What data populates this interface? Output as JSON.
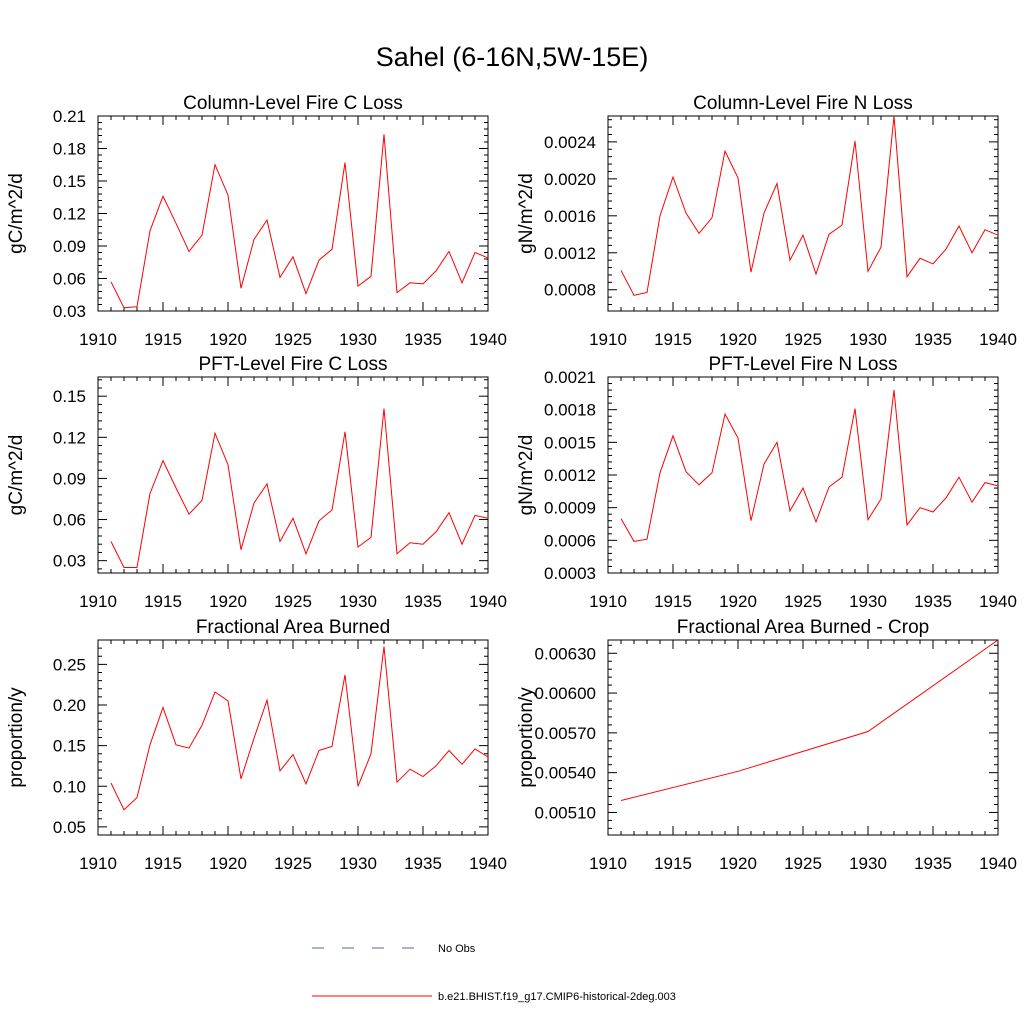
{
  "figure_title": "Sahel (6-16N,5W-15E)",
  "colors": {
    "model": "#ff0000",
    "obs": "#5566aa",
    "axis": "#000000"
  },
  "legend": {
    "obs_label": "No Obs",
    "model_label": "b.e21.BHIST.f19_g17.CMIP6-historical-2deg.003"
  },
  "chart_data": [
    {
      "type": "line",
      "title": "Column-Level Fire C Loss",
      "ylabel": "gC/m^2/d",
      "xlim": [
        1910,
        1940
      ],
      "ylim": [
        0.03,
        0.21
      ],
      "xticks": [
        1910,
        1915,
        1920,
        1925,
        1930,
        1935,
        1940
      ],
      "xtick_labels": [
        "1910",
        "1915",
        "1920",
        "1925",
        "1930",
        "1935",
        "1940"
      ],
      "yticks": [
        0.03,
        0.06,
        0.09,
        0.12,
        0.15,
        0.18,
        0.21
      ],
      "ytick_labels": [
        "0.03",
        "0.06",
        "0.09",
        "0.12",
        "0.15",
        "0.18",
        "0.21"
      ],
      "series": [
        {
          "x": [
            1911,
            1912,
            1913,
            1914,
            1915,
            1916,
            1917,
            1918,
            1919,
            1920,
            1921,
            1922,
            1923,
            1924,
            1925,
            1926,
            1927,
            1928,
            1929,
            1930,
            1931,
            1932,
            1933,
            1934,
            1935,
            1936,
            1937,
            1938,
            1939,
            1940
          ],
          "values": [
            0.057,
            0.033,
            0.034,
            0.104,
            0.136,
            0.111,
            0.085,
            0.1,
            0.165,
            0.137,
            0.051,
            0.096,
            0.114,
            0.061,
            0.08,
            0.046,
            0.077,
            0.087,
            0.167,
            0.053,
            0.062,
            0.193,
            0.047,
            0.056,
            0.055,
            0.067,
            0.085,
            0.056,
            0.084,
            0.079
          ]
        }
      ]
    },
    {
      "type": "line",
      "title": "Column-Level Fire N Loss",
      "ylabel": "gN/m^2/d",
      "xlim": [
        1910,
        1940
      ],
      "ylim": [
        0.00057,
        0.00268
      ],
      "xticks": [
        1910,
        1915,
        1920,
        1925,
        1930,
        1935,
        1940
      ],
      "xtick_labels": [
        "1910",
        "1915",
        "1920",
        "1925",
        "1930",
        "1935",
        "1940"
      ],
      "yticks": [
        0.0008,
        0.0012,
        0.0016,
        0.002,
        0.0024
      ],
      "ytick_labels": [
        "0.0008",
        "0.0012",
        "0.0016",
        "0.0020",
        "0.0024"
      ],
      "series": [
        {
          "x": [
            1911,
            1912,
            1913,
            1914,
            1915,
            1916,
            1917,
            1918,
            1919,
            1920,
            1921,
            1922,
            1923,
            1924,
            1925,
            1926,
            1927,
            1928,
            1929,
            1930,
            1931,
            1932,
            1933,
            1934,
            1935,
            1936,
            1937,
            1938,
            1939,
            1940
          ],
          "values": [
            0.00101,
            0.00074,
            0.00077,
            0.0016,
            0.00202,
            0.00163,
            0.00141,
            0.00158,
            0.0023,
            0.00201,
            0.00099,
            0.00163,
            0.00195,
            0.00112,
            0.00139,
            0.00097,
            0.0014,
            0.0015,
            0.00241,
            0.001,
            0.00126,
            0.00268,
            0.00094,
            0.00114,
            0.00108,
            0.00124,
            0.00149,
            0.0012,
            0.00145,
            0.00139
          ]
        }
      ]
    },
    {
      "type": "line",
      "title": "PFT-Level Fire C Loss",
      "ylabel": "gC/m^2/d",
      "xlim": [
        1910,
        1940
      ],
      "ylim": [
        0.021,
        0.164
      ],
      "xticks": [
        1910,
        1915,
        1920,
        1925,
        1930,
        1935,
        1940
      ],
      "xtick_labels": [
        "1910",
        "1915",
        "1920",
        "1925",
        "1930",
        "1935",
        "1940"
      ],
      "yticks": [
        0.03,
        0.06,
        0.09,
        0.12,
        0.15
      ],
      "ytick_labels": [
        "0.03",
        "0.06",
        "0.09",
        "0.12",
        "0.15"
      ],
      "series": [
        {
          "x": [
            1911,
            1912,
            1913,
            1914,
            1915,
            1916,
            1917,
            1918,
            1919,
            1920,
            1921,
            1922,
            1923,
            1924,
            1925,
            1926,
            1927,
            1928,
            1929,
            1930,
            1931,
            1932,
            1933,
            1934,
            1935,
            1936,
            1937,
            1938,
            1939,
            1940
          ],
          "values": [
            0.044,
            0.025,
            0.025,
            0.079,
            0.103,
            0.083,
            0.064,
            0.074,
            0.123,
            0.1,
            0.038,
            0.072,
            0.086,
            0.044,
            0.061,
            0.035,
            0.059,
            0.067,
            0.124,
            0.04,
            0.047,
            0.141,
            0.035,
            0.043,
            0.042,
            0.051,
            0.065,
            0.042,
            0.063,
            0.061
          ]
        }
      ]
    },
    {
      "type": "line",
      "title": "PFT-Level Fire N Loss",
      "ylabel": "gN/m^2/d",
      "xlim": [
        1910,
        1940
      ],
      "ylim": [
        0.0003,
        0.0021
      ],
      "xticks": [
        1910,
        1915,
        1920,
        1925,
        1930,
        1935,
        1940
      ],
      "xtick_labels": [
        "1910",
        "1915",
        "1920",
        "1925",
        "1930",
        "1935",
        "1940"
      ],
      "yticks": [
        0.0003,
        0.0006,
        0.0009,
        0.0012,
        0.0015,
        0.0018,
        0.0021
      ],
      "ytick_labels": [
        "0.0003",
        "0.0006",
        "0.0009",
        "0.0012",
        "0.0015",
        "0.0018",
        "0.0021"
      ],
      "series": [
        {
          "x": [
            1911,
            1912,
            1913,
            1914,
            1915,
            1916,
            1917,
            1918,
            1919,
            1920,
            1921,
            1922,
            1923,
            1924,
            1925,
            1926,
            1927,
            1928,
            1929,
            1930,
            1931,
            1932,
            1933,
            1934,
            1935,
            1936,
            1937,
            1938,
            1939,
            1940
          ],
          "values": [
            0.0008,
            0.00059,
            0.00061,
            0.00122,
            0.00156,
            0.00123,
            0.00111,
            0.00122,
            0.00176,
            0.00154,
            0.00078,
            0.0013,
            0.0015,
            0.00087,
            0.00108,
            0.00077,
            0.00109,
            0.00118,
            0.00181,
            0.00079,
            0.00098,
            0.00198,
            0.00074,
            0.0009,
            0.00086,
            0.00099,
            0.00118,
            0.00095,
            0.00113,
            0.0011
          ]
        }
      ]
    },
    {
      "type": "line",
      "title": "Fractional Area Burned",
      "ylabel": "proportion/y",
      "xlim": [
        1910,
        1940
      ],
      "ylim": [
        0.04,
        0.28
      ],
      "xticks": [
        1910,
        1915,
        1920,
        1925,
        1930,
        1935,
        1940
      ],
      "xtick_labels": [
        "1910",
        "1915",
        "1920",
        "1925",
        "1930",
        "1935",
        "1940"
      ],
      "yticks": [
        0.05,
        0.1,
        0.15,
        0.2,
        0.25
      ],
      "ytick_labels": [
        "0.05",
        "0.10",
        "0.15",
        "0.20",
        "0.25"
      ],
      "series": [
        {
          "x": [
            1911,
            1912,
            1913,
            1914,
            1915,
            1916,
            1917,
            1918,
            1919,
            1920,
            1921,
            1922,
            1923,
            1924,
            1925,
            1926,
            1927,
            1928,
            1929,
            1930,
            1931,
            1932,
            1933,
            1934,
            1935,
            1936,
            1937,
            1938,
            1939,
            1940
          ],
          "values": [
            0.104,
            0.071,
            0.086,
            0.151,
            0.197,
            0.151,
            0.147,
            0.175,
            0.216,
            0.205,
            0.109,
            0.159,
            0.206,
            0.119,
            0.139,
            0.103,
            0.144,
            0.149,
            0.237,
            0.1,
            0.14,
            0.272,
            0.105,
            0.121,
            0.112,
            0.125,
            0.144,
            0.127,
            0.146,
            0.136
          ]
        }
      ]
    },
    {
      "type": "line",
      "title": "Fractional Area Burned - Crop",
      "ylabel": "proportion/y",
      "xlim": [
        1910,
        1940
      ],
      "ylim": [
        0.00493,
        0.0064
      ],
      "xticks": [
        1910,
        1915,
        1920,
        1925,
        1930,
        1935,
        1940
      ],
      "xtick_labels": [
        "1910",
        "1915",
        "1920",
        "1925",
        "1930",
        "1935",
        "1940"
      ],
      "yticks": [
        0.0051,
        0.0054,
        0.0057,
        0.006,
        0.0063
      ],
      "ytick_labels": [
        "0.00510",
        "0.00540",
        "0.00570",
        "0.00600",
        "0.00630"
      ],
      "series": [
        {
          "x": [
            1911,
            1920,
            1930,
            1940
          ],
          "values": [
            0.00519,
            0.00541,
            0.00571,
            0.0064
          ]
        }
      ]
    }
  ]
}
